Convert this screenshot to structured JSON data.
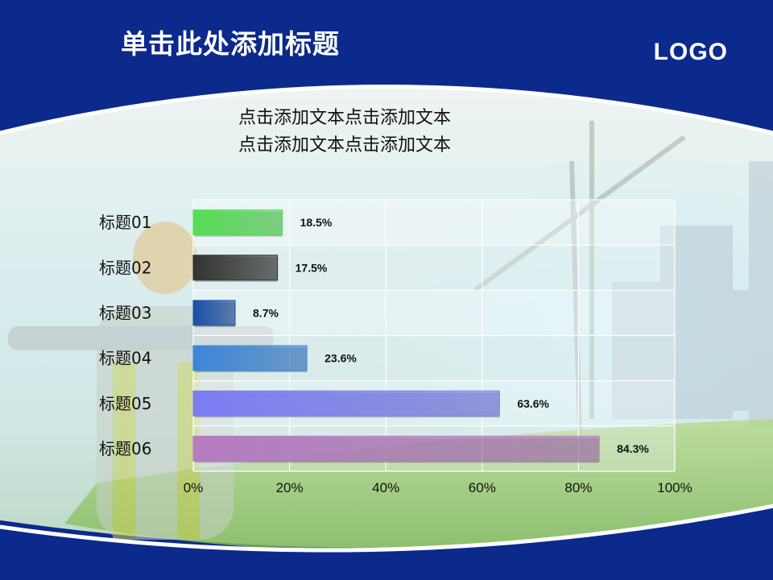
{
  "slide": {
    "title": "单击此处添加标题",
    "logo": "LOGO",
    "body_lines": [
      "点击添加文本点击添加文本",
      "点击添加文本点击添加文本"
    ]
  },
  "colors": {
    "background": "#0b2a8c",
    "series": [
      "#55dd55",
      "#333333",
      "#1b4fa6",
      "#3d86d8",
      "#7c7cf4",
      "#b57cc0"
    ]
  },
  "chart_data": {
    "type": "bar",
    "orientation": "horizontal",
    "categories": [
      "标题01",
      "标题02",
      "标题03",
      "标题04",
      "标题05",
      "标题06"
    ],
    "values": [
      18.5,
      17.5,
      8.7,
      23.6,
      63.6,
      84.3
    ],
    "value_labels": [
      "18.5%",
      "17.5%",
      "8.7%",
      "23.6%",
      "63.6%",
      "84.3%"
    ],
    "xlim": [
      0,
      100
    ],
    "x_ticks": [
      "0%",
      "20%",
      "40%",
      "60%",
      "80%",
      "100%"
    ],
    "grid": true
  }
}
